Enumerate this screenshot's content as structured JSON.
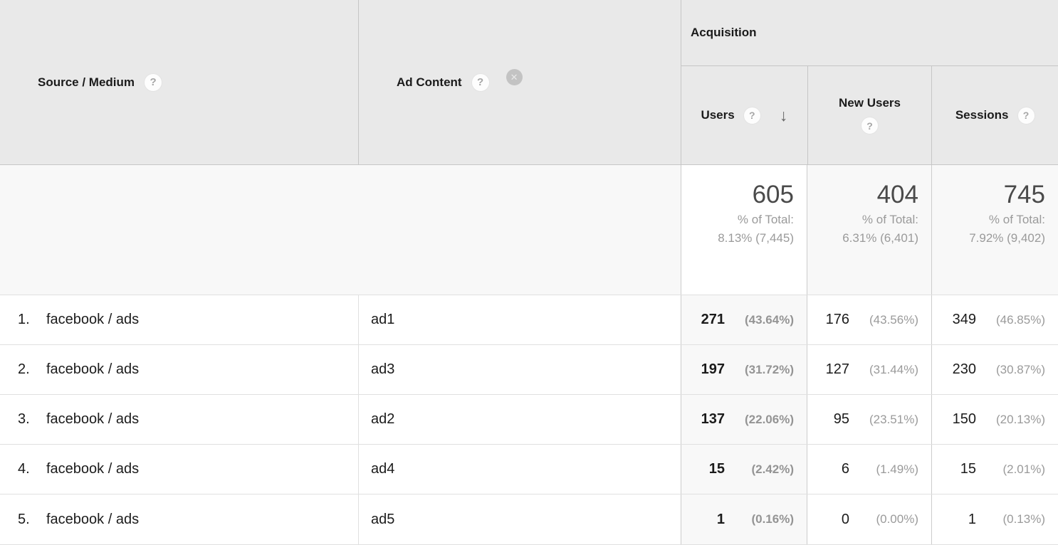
{
  "icons": {
    "help": "?",
    "remove": "✕",
    "sort_desc": "↓"
  },
  "table": {
    "dimension_headers": {
      "primary": "Source / Medium",
      "secondary": "Ad Content"
    },
    "group_header": "Acquisition",
    "metric_headers": {
      "users": "Users",
      "new_users": "New Users",
      "sessions": "Sessions"
    },
    "summary": {
      "users": {
        "value": "605",
        "pct_label": "% of Total:",
        "pct_value": "8.13% (7,445)"
      },
      "new_users": {
        "value": "404",
        "pct_label": "% of Total:",
        "pct_value": "6.31% (6,401)"
      },
      "sessions": {
        "value": "745",
        "pct_label": "% of Total:",
        "pct_value": "7.92% (9,402)"
      }
    },
    "rows": [
      {
        "index": "1.",
        "source_medium": "facebook / ads",
        "ad_content": "ad1",
        "users": "271",
        "users_pct": "(43.64%)",
        "new_users": "176",
        "new_users_pct": "(43.56%)",
        "sessions": "349",
        "sessions_pct": "(46.85%)"
      },
      {
        "index": "2.",
        "source_medium": "facebook / ads",
        "ad_content": "ad3",
        "users": "197",
        "users_pct": "(31.72%)",
        "new_users": "127",
        "new_users_pct": "(31.44%)",
        "sessions": "230",
        "sessions_pct": "(30.87%)"
      },
      {
        "index": "3.",
        "source_medium": "facebook / ads",
        "ad_content": "ad2",
        "users": "137",
        "users_pct": "(22.06%)",
        "new_users": "95",
        "new_users_pct": "(23.51%)",
        "sessions": "150",
        "sessions_pct": "(20.13%)"
      },
      {
        "index": "4.",
        "source_medium": "facebook / ads",
        "ad_content": "ad4",
        "users": "15",
        "users_pct": "(2.42%)",
        "new_users": "6",
        "new_users_pct": "(1.49%)",
        "sessions": "15",
        "sessions_pct": "(2.01%)"
      },
      {
        "index": "5.",
        "source_medium": "facebook / ads",
        "ad_content": "ad5",
        "users": "1",
        "users_pct": "(0.16%)",
        "new_users": "0",
        "new_users_pct": "(0.00%)",
        "sessions": "1",
        "sessions_pct": "(0.13%)"
      }
    ]
  },
  "colors": {
    "header_bg": "#e9e9e9",
    "header_border": "#c6c6c6",
    "row_border": "#e0e0e0",
    "sorted_column_bg": "#f8f8f8",
    "muted_text": "#9a9a9a"
  }
}
